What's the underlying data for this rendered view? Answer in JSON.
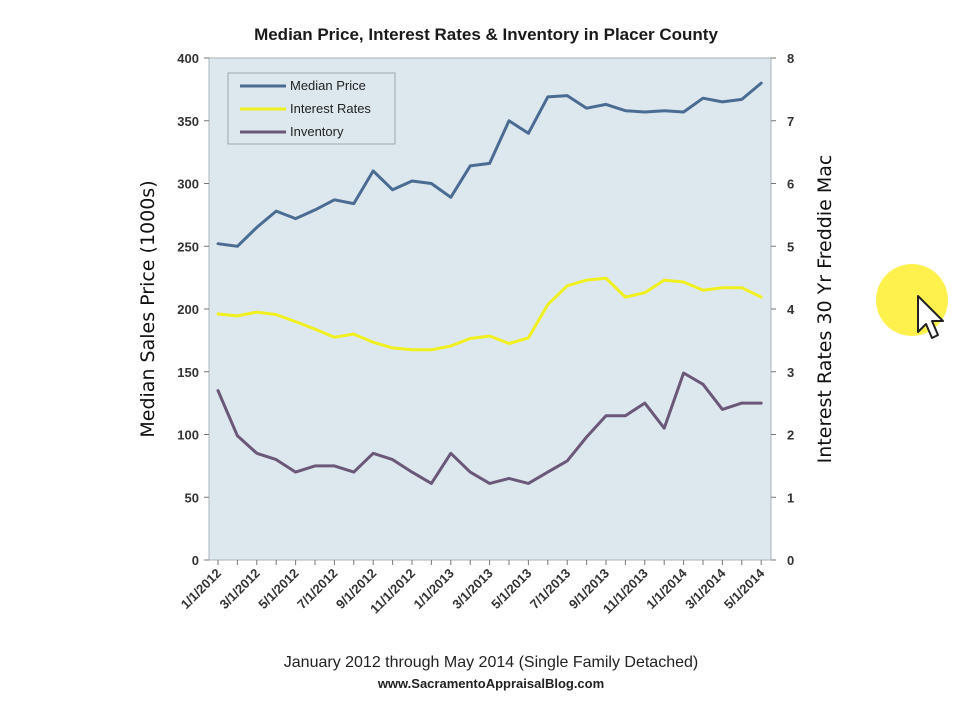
{
  "chart_data": {
    "type": "line",
    "title": "Median Price, Interest Rates & Inventory in Placer County",
    "xlabel": "January 2012 through May 2014 (Single Family Detached)",
    "ylabel_left": "Median Sales Price (1000s)",
    "ylabel_right": "Interest Rates 30 Yr Freddie Mac",
    "source": "www.SacramentoAppraisalBlog.com",
    "ylim_left": [
      0,
      400
    ],
    "ylim_right": [
      0,
      8
    ],
    "yticks_left": [
      "0",
      "50",
      "100",
      "150",
      "200",
      "250",
      "300",
      "350",
      "400"
    ],
    "yticks_right": [
      "0",
      "1",
      "2",
      "3",
      "4",
      "5",
      "6",
      "7",
      "8"
    ],
    "x": [
      "2012-01",
      "2012-02",
      "2012-03",
      "2012-04",
      "2012-05",
      "2012-06",
      "2012-07",
      "2012-08",
      "2012-09",
      "2012-10",
      "2012-11",
      "2012-12",
      "2013-01",
      "2013-02",
      "2013-03",
      "2013-04",
      "2013-05",
      "2013-06",
      "2013-07",
      "2013-08",
      "2013-09",
      "2013-10",
      "2013-11",
      "2013-12",
      "2014-01",
      "2014-02",
      "2014-03",
      "2014-04",
      "2014-05"
    ],
    "xtick_labels": [
      "1/1/2012",
      "3/1/2012",
      "5/1/2012",
      "7/1/2012",
      "9/1/2012",
      "11/1/2012",
      "1/1/2013",
      "3/1/2013",
      "5/1/2013",
      "7/1/2013",
      "9/1/2013",
      "11/1/2013",
      "1/1/2014",
      "3/1/2014",
      "5/1/2014"
    ],
    "legend_placement": "top-left",
    "grid": false,
    "series": [
      {
        "name": "Median Price",
        "axis": "left",
        "color": "#4a6b92",
        "values": [
          252,
          250,
          265,
          278,
          272,
          279,
          287,
          284,
          310,
          295,
          302,
          300,
          289,
          314,
          316,
          350,
          340,
          369,
          370,
          360,
          363,
          358,
          357,
          358,
          357,
          368,
          365,
          367,
          380
        ]
      },
      {
        "name": "Interest Rates",
        "axis": "right",
        "color": "#f0f020",
        "values": [
          3.92,
          3.89,
          3.95,
          3.91,
          3.8,
          3.68,
          3.55,
          3.6,
          3.47,
          3.38,
          3.35,
          3.35,
          3.41,
          3.53,
          3.57,
          3.45,
          3.54,
          4.07,
          4.37,
          4.46,
          4.49,
          4.19,
          4.26,
          4.46,
          4.43,
          4.3,
          4.34,
          4.34,
          4.19
        ]
      },
      {
        "name": "Inventory",
        "axis": "left",
        "color": "#6b5878",
        "values": [
          135,
          99,
          85,
          80,
          70,
          75,
          75,
          70,
          85,
          80,
          70,
          61,
          85,
          70,
          61,
          65,
          61,
          70,
          79,
          98,
          115,
          115,
          125,
          105,
          149,
          140,
          120,
          125,
          125
        ]
      }
    ]
  },
  "cursor": {
    "icon": "mouse-pointer-icon",
    "highlight_color": "#ffef3a"
  }
}
